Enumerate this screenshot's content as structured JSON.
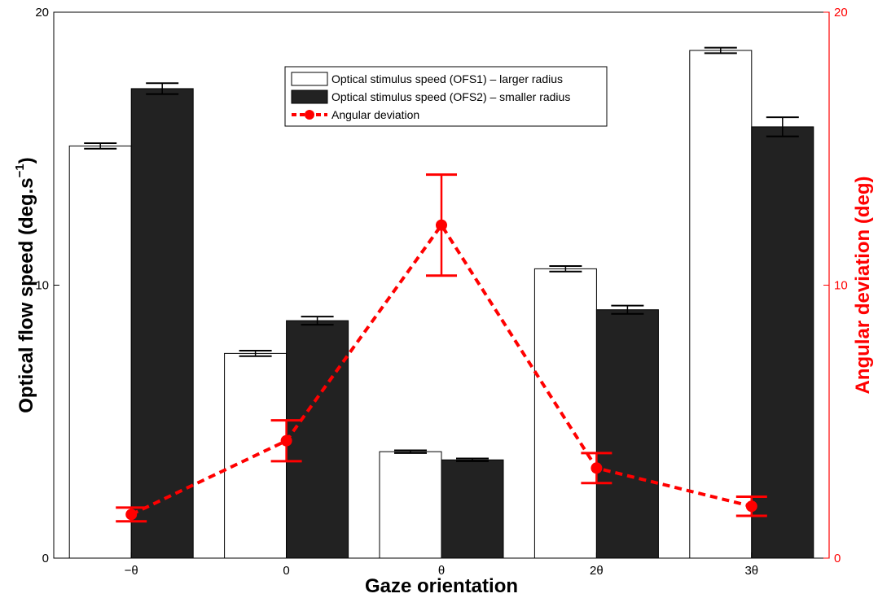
{
  "chart_data": {
    "type": "bar",
    "categories": [
      "−θ",
      "0",
      "θ",
      "2θ",
      "3θ"
    ],
    "series": [
      {
        "name": "Optical stimulus speed (OFS1) – larger radius",
        "values": [
          15.1,
          7.5,
          3.9,
          10.6,
          18.6
        ],
        "errors": [
          0.1,
          0.1,
          0.05,
          0.1,
          0.1
        ],
        "color": "#ffffff",
        "axis": "left"
      },
      {
        "name": "Optical stimulus speed (OFS2) – smaller radius",
        "values": [
          17.2,
          8.7,
          3.6,
          9.1,
          15.8
        ],
        "errors": [
          0.2,
          0.15,
          0.05,
          0.15,
          0.35
        ],
        "color": "#222222",
        "axis": "left"
      }
    ],
    "line_series": {
      "name": "Angular deviation",
      "values": [
        1.6,
        4.3,
        12.2,
        3.3,
        1.9
      ],
      "errors": [
        0.25,
        0.75,
        1.85,
        0.55,
        0.35
      ],
      "color": "#ff0000",
      "axis": "right"
    },
    "xlabel": "Gaze orientation",
    "ylabel": "Optical flow speed (deg.s",
    "ylabel_sup": "−1",
    "ylabel_suffix": ")",
    "y2label": "Angular deviation (deg)",
    "ylim": [
      0,
      20
    ],
    "y2lim": [
      0,
      20
    ],
    "yticks": [
      "0",
      "10",
      "20"
    ],
    "y2ticks": [
      "0",
      "10",
      "20"
    ],
    "grid": false,
    "legend_position": "top-center"
  }
}
